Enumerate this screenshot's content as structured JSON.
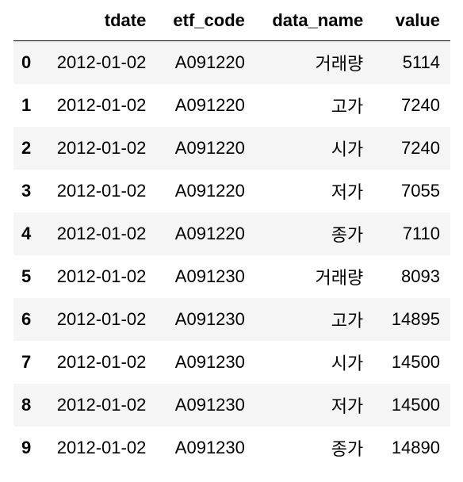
{
  "columns": {
    "index": "",
    "tdate": "tdate",
    "etf_code": "etf_code",
    "data_name": "data_name",
    "value": "value"
  },
  "rows": [
    {
      "index": "0",
      "tdate": "2012-01-02",
      "etf_code": "A091220",
      "data_name": "거래량",
      "value": "5114"
    },
    {
      "index": "1",
      "tdate": "2012-01-02",
      "etf_code": "A091220",
      "data_name": "고가",
      "value": "7240"
    },
    {
      "index": "2",
      "tdate": "2012-01-02",
      "etf_code": "A091220",
      "data_name": "시가",
      "value": "7240"
    },
    {
      "index": "3",
      "tdate": "2012-01-02",
      "etf_code": "A091220",
      "data_name": "저가",
      "value": "7055"
    },
    {
      "index": "4",
      "tdate": "2012-01-02",
      "etf_code": "A091220",
      "data_name": "종가",
      "value": "7110"
    },
    {
      "index": "5",
      "tdate": "2012-01-02",
      "etf_code": "A091230",
      "data_name": "거래량",
      "value": "8093"
    },
    {
      "index": "6",
      "tdate": "2012-01-02",
      "etf_code": "A091230",
      "data_name": "고가",
      "value": "14895"
    },
    {
      "index": "7",
      "tdate": "2012-01-02",
      "etf_code": "A091230",
      "data_name": "시가",
      "value": "14500"
    },
    {
      "index": "8",
      "tdate": "2012-01-02",
      "etf_code": "A091230",
      "data_name": "저가",
      "value": "14500"
    },
    {
      "index": "9",
      "tdate": "2012-01-02",
      "etf_code": "A091230",
      "data_name": "종가",
      "value": "14890"
    }
  ]
}
